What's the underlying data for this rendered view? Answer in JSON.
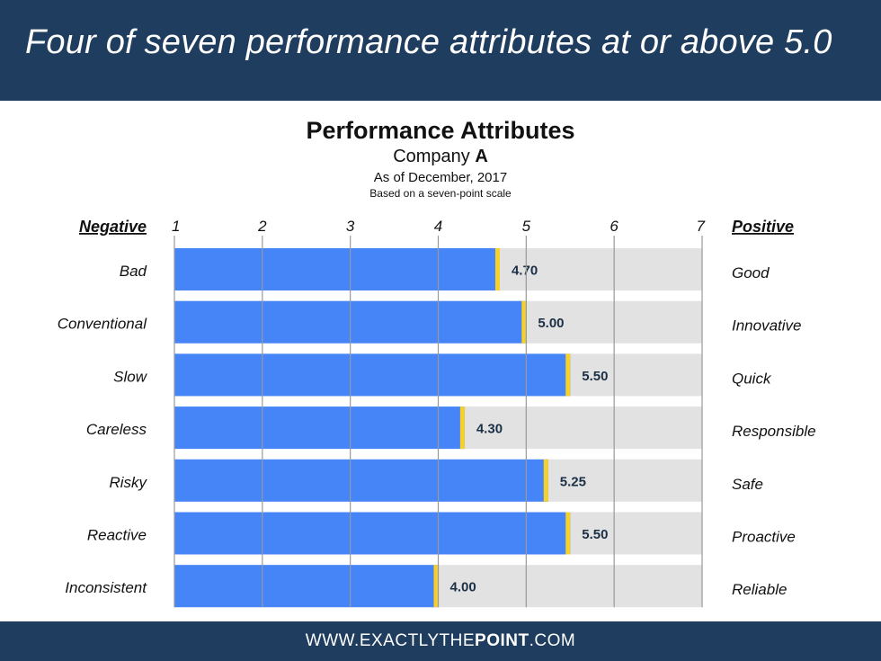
{
  "header": {
    "headline": "Four of seven performance attributes at or above 5.0"
  },
  "footer": {
    "url_prefix": "WWW.EXACTLYTHE",
    "url_bold": "POINT",
    "url_suffix": ".COM"
  },
  "colors": {
    "header_bg": "#1f3d5e",
    "bar": "#4585f8",
    "marker": "#f7d12a",
    "track": "#e2e2e2",
    "grid": "#999999"
  },
  "chart_data": {
    "type": "bar",
    "orientation": "horizontal",
    "title": "Performance Attributes",
    "subtitle_prefix": "Company ",
    "subtitle_bold": "A",
    "date": "As of December, 2017",
    "note": "Based on a seven-point scale",
    "left_header": "Negative",
    "right_header": "Positive",
    "xlim": [
      1,
      7
    ],
    "ticks": [
      "1",
      "2",
      "3",
      "4",
      "5",
      "6",
      "7"
    ],
    "categories": [
      "Bad",
      "Conventional",
      "Slow",
      "Careless",
      "Risky",
      "Reactive",
      "Inconsistent"
    ],
    "right_labels": [
      "Good",
      "Innovative",
      "Quick",
      "Responsible",
      "Safe",
      "Proactive",
      "Reliable"
    ],
    "values": [
      4.7,
      5.0,
      5.5,
      4.3,
      5.25,
      5.5,
      4.0
    ],
    "value_labels": [
      "4.70",
      "5.00",
      "5.50",
      "4.30",
      "5.25",
      "5.50",
      "4.00"
    ],
    "grid": true
  }
}
